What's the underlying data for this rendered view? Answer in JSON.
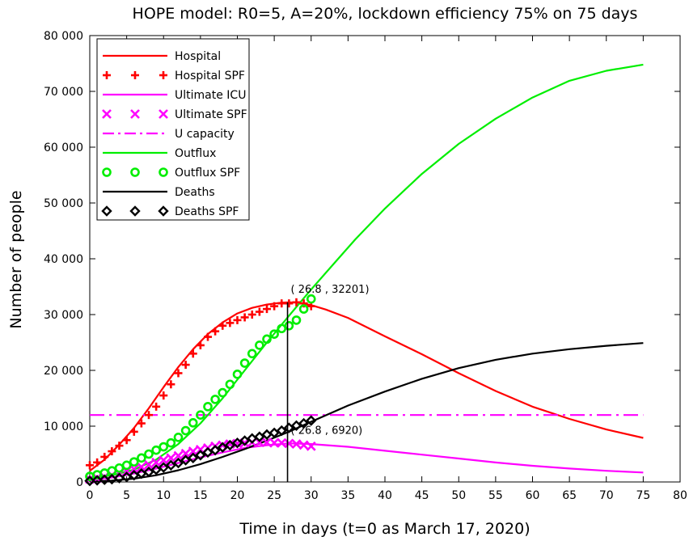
{
  "chart_data": {
    "type": "line",
    "title": "HOPE model: R0=5, A=20%, lockdown efficiency 75% on 75 days",
    "xlabel": "Time in days (t=0 as March 17, 2020)",
    "ylabel": "Number of people",
    "xlim": [
      0,
      80
    ],
    "ylim": [
      0,
      80000
    ],
    "xticks": [
      0,
      5,
      10,
      15,
      20,
      25,
      30,
      35,
      40,
      45,
      50,
      55,
      60,
      65,
      70,
      75,
      80
    ],
    "xtick_labels": [
      "0",
      "5",
      "10",
      "15",
      "20",
      "25",
      "30",
      "35",
      "40",
      "45",
      "50",
      "55",
      "60",
      "65",
      "70",
      "75",
      "80"
    ],
    "yticks": [
      0,
      10000,
      20000,
      30000,
      40000,
      50000,
      60000,
      70000,
      80000
    ],
    "ytick_labels": [
      "0",
      "10 000",
      "20 000",
      "30 000",
      "40 000",
      "50 000",
      "60 000",
      "70 000",
      "80 000"
    ],
    "grid": false,
    "legend_position": "top-left",
    "series": [
      {
        "name": "Hospital",
        "kind": "line",
        "dash": "solid",
        "color": "#ff0000",
        "x": [
          0,
          2,
          4,
          6,
          8,
          10,
          12,
          14,
          16,
          18,
          20,
          22,
          24,
          26,
          27,
          28,
          30,
          32,
          35,
          40,
          45,
          50,
          55,
          60,
          65,
          70,
          75
        ],
        "y": [
          2000,
          4000,
          6700,
          9700,
          13200,
          17000,
          20600,
          23800,
          26500,
          28600,
          30200,
          31200,
          31800,
          32150,
          32201,
          32150,
          31700,
          30900,
          29400,
          26100,
          22900,
          19500,
          16300,
          13500,
          11300,
          9400,
          7900
        ]
      },
      {
        "name": "Hospital SPF",
        "kind": "marker",
        "marker": "plus",
        "color": "#ff0000",
        "x": [
          0,
          1,
          2,
          3,
          4,
          5,
          6,
          7,
          8,
          9,
          10,
          11,
          12,
          13,
          14,
          15,
          16,
          17,
          18,
          19,
          20,
          21,
          22,
          23,
          24,
          25,
          26,
          27,
          28,
          29,
          30
        ],
        "y": [
          3000,
          3500,
          4500,
          5500,
          6500,
          7500,
          9000,
          10500,
          12000,
          13500,
          15500,
          17500,
          19500,
          21000,
          23000,
          24500,
          26000,
          27000,
          28000,
          28500,
          29000,
          29500,
          30000,
          30500,
          31000,
          31500,
          32000,
          32000,
          32200,
          32000,
          31500
        ]
      },
      {
        "name": "Ultimate ICU",
        "kind": "line",
        "dash": "solid",
        "color": "#ff00ff",
        "x": [
          0,
          3,
          6,
          9,
          12,
          15,
          18,
          21,
          24,
          27,
          30,
          35,
          40,
          45,
          50,
          55,
          60,
          65,
          70,
          75
        ],
        "y": [
          400,
          800,
          1500,
          2400,
          3400,
          4400,
          5300,
          6100,
          6600,
          6920,
          6800,
          6300,
          5600,
          4900,
          4200,
          3500,
          2900,
          2400,
          2000,
          1700
        ]
      },
      {
        "name": "Ultimate SPF",
        "kind": "marker",
        "marker": "x",
        "color": "#ff00ff",
        "x": [
          0,
          1,
          2,
          3,
          4,
          5,
          6,
          7,
          8,
          9,
          10,
          11,
          12,
          13,
          14,
          15,
          16,
          17,
          18,
          19,
          20,
          21,
          22,
          23,
          24,
          25,
          26,
          27,
          28,
          29,
          30
        ],
        "y": [
          500,
          700,
          900,
          1200,
          1500,
          1900,
          2300,
          2700,
          3100,
          3500,
          3900,
          4300,
          4700,
          5100,
          5500,
          5800,
          6100,
          6400,
          6600,
          6800,
          6900,
          7000,
          7100,
          7100,
          7100,
          7000,
          7000,
          6900,
          6800,
          6600,
          6400
        ]
      },
      {
        "name": "U capacity",
        "kind": "line",
        "dash": "dashdot",
        "color": "#ff00ff",
        "x": [
          0,
          75
        ],
        "y": [
          12000,
          12000
        ]
      },
      {
        "name": "Outflux",
        "kind": "line",
        "dash": "solid",
        "color": "#00ee00",
        "x": [
          0,
          3,
          6,
          9,
          12,
          15,
          18,
          21,
          24,
          27,
          30,
          33,
          36,
          40,
          45,
          50,
          55,
          60,
          65,
          70,
          75
        ],
        "y": [
          700,
          1200,
          2200,
          4000,
          6800,
          10500,
          15000,
          20000,
          25000,
          29800,
          34500,
          39000,
          43500,
          49000,
          55200,
          60600,
          65100,
          68900,
          71900,
          73700,
          74800
        ]
      },
      {
        "name": "Outflux SPF",
        "kind": "marker",
        "marker": "circle",
        "color": "#00ee00",
        "x": [
          0,
          1,
          2,
          3,
          4,
          5,
          6,
          7,
          8,
          9,
          10,
          11,
          12,
          13,
          14,
          15,
          16,
          17,
          18,
          19,
          20,
          21,
          22,
          23,
          24,
          25,
          26,
          27,
          28,
          29,
          30
        ],
        "y": [
          1000,
          1300,
          1600,
          2000,
          2500,
          3000,
          3600,
          4300,
          5000,
          5700,
          6300,
          7000,
          8000,
          9200,
          10600,
          12000,
          13500,
          14800,
          16000,
          17500,
          19300,
          21300,
          23000,
          24500,
          25600,
          26500,
          27500,
          28000,
          29000,
          31000,
          32800
        ]
      },
      {
        "name": "Deaths",
        "kind": "line",
        "dash": "solid",
        "color": "#000000",
        "x": [
          0,
          3,
          6,
          9,
          12,
          15,
          18,
          21,
          24,
          27,
          30,
          35,
          40,
          45,
          50,
          55,
          60,
          65,
          70,
          75
        ],
        "y": [
          100,
          250,
          600,
          1200,
          2100,
          3200,
          4500,
          5900,
          7400,
          9000,
          10800,
          13700,
          16200,
          18500,
          20400,
          21900,
          23000,
          23800,
          24400,
          24900
        ]
      },
      {
        "name": "Deaths SPF",
        "kind": "marker",
        "marker": "diamond",
        "color": "#000000",
        "x": [
          0,
          1,
          2,
          3,
          4,
          5,
          6,
          7,
          8,
          9,
          10,
          11,
          12,
          13,
          14,
          15,
          16,
          17,
          18,
          19,
          20,
          21,
          22,
          23,
          24,
          25,
          26,
          27,
          28,
          29,
          30
        ],
        "y": [
          200,
          300,
          400,
          500,
          700,
          900,
          1200,
          1500,
          1800,
          2200,
          2600,
          3000,
          3400,
          3900,
          4300,
          4800,
          5300,
          5700,
          6200,
          6600,
          7000,
          7400,
          7800,
          8100,
          8500,
          8800,
          9200,
          9700,
          10100,
          10500,
          11000
        ]
      }
    ],
    "annotations": [
      {
        "text": "( 26.8 , 32201)",
        "x": 26.8,
        "y": 32201
      },
      {
        "text": "( 26.8 , 6920)",
        "x": 26.8,
        "y": 6920
      }
    ],
    "vertical_marker": {
      "x": 26.8,
      "y_top": 32201,
      "color": "#000000"
    }
  }
}
